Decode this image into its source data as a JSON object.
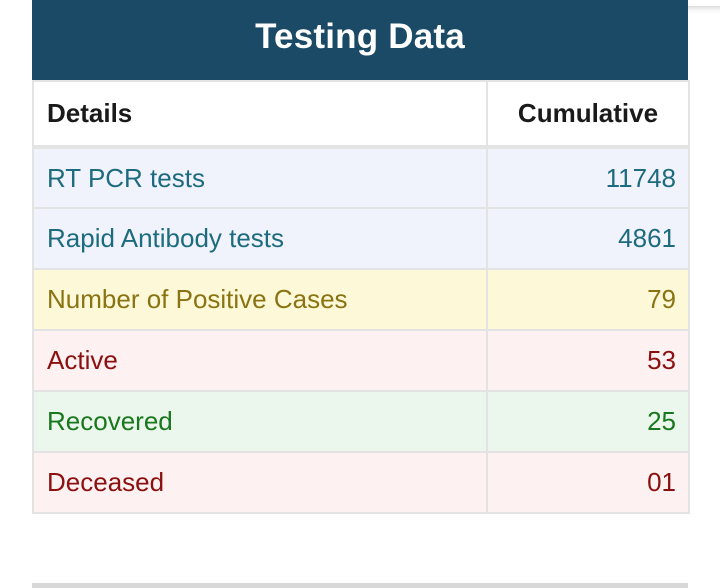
{
  "header": {
    "title": "Testing Data"
  },
  "table": {
    "columns": [
      "Details",
      "Cumulative"
    ],
    "rows": [
      {
        "label": "RT PCR tests",
        "value": "11748"
      },
      {
        "label": "Rapid Antibody tests",
        "value": "4861"
      },
      {
        "label": "Number of Positive Cases",
        "value": "79"
      },
      {
        "label": "Active",
        "value": "53"
      },
      {
        "label": "Recovered",
        "value": "25"
      },
      {
        "label": "Deceased",
        "value": "01"
      }
    ]
  },
  "colors": {
    "header_bg": "#1b4a66",
    "info_text": "#1d6b7e",
    "positive_text": "#8a7312",
    "active_text": "#8b1010",
    "recovered_text": "#19781d",
    "deceased_text": "#8b1010"
  }
}
